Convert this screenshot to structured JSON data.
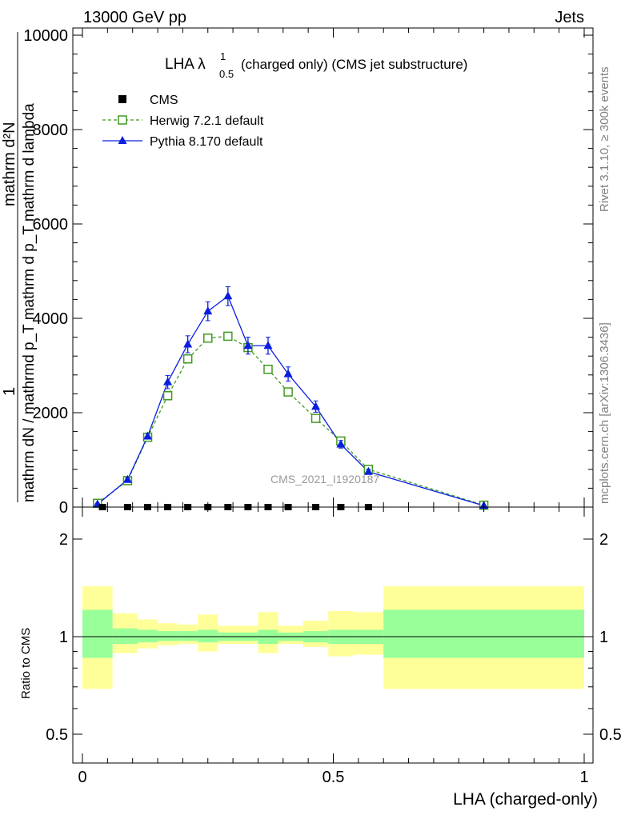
{
  "header": {
    "left": "13000 GeV pp",
    "right": "Jets"
  },
  "side_labels": {
    "rivet": "Rivet 3.1.10, ≥ 300k events",
    "mcplots": "mcplots.cern.ch [arXiv:1306.3436]"
  },
  "watermark": "CMS_2021_I1920187",
  "chart_data": [
    {
      "type": "line",
      "title": "LHA λ^1_0.5 (charged only) (CMS jet substructure)",
      "title_main": "LHA λ",
      "title_sup": "1",
      "title_sub": "0.5",
      "title_rest": "(charged only) (CMS jet substructure)",
      "ylabel_numerator": "1",
      "ylabel_denominator": "mathrm dN / mathrmd p_T mathrm d p_T mathrm d lambda",
      "ylabel_numerator_frac": "mathrm d²N",
      "ylim": [
        0,
        10000
      ],
      "y_ticks": [
        0,
        2000,
        4000,
        6000,
        8000,
        10000
      ],
      "y_tick_labels": [
        "0",
        "2000",
        "4000",
        "6000",
        "8000",
        "10000"
      ],
      "xlim": [
        0,
        1
      ],
      "legend_position": "top-left",
      "legend": [
        {
          "name": "CMS",
          "marker": "filled-square",
          "color": "#000000"
        },
        {
          "name": "Herwig 7.2.1 default",
          "marker": "open-square-dashed",
          "color": "#3f9a1e"
        },
        {
          "name": "Pythia 8.170 default",
          "marker": "filled-triangle",
          "color": "#0a1ee0"
        }
      ],
      "series": [
        {
          "name": "CMS",
          "color": "#000000",
          "x": [
            0.04,
            0.09,
            0.13,
            0.17,
            0.21,
            0.25,
            0.29,
            0.33,
            0.37,
            0.41,
            0.465,
            0.515,
            0.57
          ],
          "y": [
            0,
            0,
            0,
            0,
            0,
            0,
            0,
            0,
            0,
            0,
            0,
            0,
            0
          ]
        },
        {
          "name": "Herwig 7.2.1 default",
          "color": "#3f9a1e",
          "x": [
            0.03,
            0.09,
            0.13,
            0.17,
            0.21,
            0.25,
            0.29,
            0.33,
            0.37,
            0.41,
            0.465,
            0.515,
            0.57,
            0.8
          ],
          "y": [
            80,
            560,
            1480,
            2360,
            3140,
            3580,
            3620,
            3380,
            2920,
            2440,
            1880,
            1400,
            800,
            40
          ]
        },
        {
          "name": "Pythia 8.170 default",
          "color": "#0a1ee0",
          "x": [
            0.03,
            0.09,
            0.13,
            0.17,
            0.21,
            0.25,
            0.29,
            0.33,
            0.37,
            0.41,
            0.465,
            0.515,
            0.57,
            0.8
          ],
          "y": [
            60,
            580,
            1500,
            2650,
            3450,
            4150,
            4470,
            3420,
            3420,
            2820,
            2130,
            1330,
            750,
            30
          ],
          "yerr": [
            20,
            40,
            60,
            140,
            180,
            200,
            200,
            180,
            180,
            150,
            120,
            80,
            50,
            10
          ]
        }
      ]
    },
    {
      "type": "area",
      "ylabel": "Ratio to CMS",
      "xlabel": "LHA (charged-only)",
      "xlim": [
        0,
        1
      ],
      "ylim": [
        0.35,
        2.2
      ],
      "y_ticks": [
        0.5,
        1,
        2
      ],
      "y_tick_labels": [
        "0.5",
        "1",
        "2"
      ],
      "x_ticks": [
        0,
        0.5,
        1
      ],
      "x_tick_labels": [
        "0",
        "0.5",
        "1"
      ],
      "reference_line": 1,
      "bins": [
        {
          "x0": 0.0,
          "x1": 0.06,
          "inner": [
            0.86,
            1.21
          ],
          "outer": [
            0.69,
            1.43
          ]
        },
        {
          "x0": 0.06,
          "x1": 0.11,
          "inner": [
            0.95,
            1.06
          ],
          "outer": [
            0.89,
            1.18
          ]
        },
        {
          "x0": 0.11,
          "x1": 0.15,
          "inner": [
            0.96,
            1.05
          ],
          "outer": [
            0.92,
            1.13
          ]
        },
        {
          "x0": 0.15,
          "x1": 0.19,
          "inner": [
            0.97,
            1.04
          ],
          "outer": [
            0.94,
            1.1
          ]
        },
        {
          "x0": 0.19,
          "x1": 0.23,
          "inner": [
            0.97,
            1.04
          ],
          "outer": [
            0.95,
            1.09
          ]
        },
        {
          "x0": 0.23,
          "x1": 0.27,
          "inner": [
            0.96,
            1.05
          ],
          "outer": [
            0.9,
            1.17
          ]
        },
        {
          "x0": 0.27,
          "x1": 0.31,
          "inner": [
            0.97,
            1.03
          ],
          "outer": [
            0.95,
            1.08
          ]
        },
        {
          "x0": 0.31,
          "x1": 0.35,
          "inner": [
            0.97,
            1.03
          ],
          "outer": [
            0.95,
            1.08
          ]
        },
        {
          "x0": 0.35,
          "x1": 0.39,
          "inner": [
            0.95,
            1.05
          ],
          "outer": [
            0.89,
            1.19
          ]
        },
        {
          "x0": 0.39,
          "x1": 0.44,
          "inner": [
            0.97,
            1.03
          ],
          "outer": [
            0.95,
            1.08
          ]
        },
        {
          "x0": 0.44,
          "x1": 0.49,
          "inner": [
            0.96,
            1.04
          ],
          "outer": [
            0.93,
            1.12
          ]
        },
        {
          "x0": 0.49,
          "x1": 0.54,
          "inner": [
            0.95,
            1.05
          ],
          "outer": [
            0.87,
            1.2
          ]
        },
        {
          "x0": 0.54,
          "x1": 0.6,
          "inner": [
            0.95,
            1.05
          ],
          "outer": [
            0.88,
            1.19
          ]
        },
        {
          "x0": 0.6,
          "x1": 1.0,
          "inner": [
            0.86,
            1.21
          ],
          "outer": [
            0.69,
            1.43
          ]
        }
      ],
      "band_colors": {
        "inner": "#99ff99",
        "outer": "#ffff99"
      }
    }
  ]
}
